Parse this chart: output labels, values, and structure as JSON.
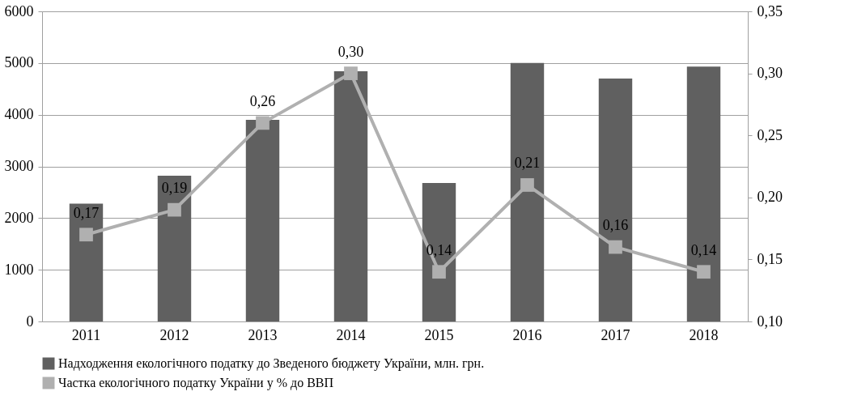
{
  "chart_data": {
    "type": "bar",
    "categories": [
      "2011",
      "2012",
      "2013",
      "2014",
      "2015",
      "2016",
      "2017",
      "2018"
    ],
    "series": [
      {
        "name": "Надходження екологічного податку до Зведеного бюджету України, млн. грн.",
        "color": "#606060",
        "values": [
          2280,
          2820,
          3900,
          4840,
          2680,
          5000,
          4700,
          4930
        ]
      },
      {
        "name": "Частка екологічного податку України у % до ВВП",
        "type": "line",
        "axis": "y2",
        "color": "#b0b0b0",
        "marker": "square",
        "values": [
          0.17,
          0.19,
          0.26,
          0.3,
          0.14,
          0.21,
          0.16,
          0.14
        ],
        "value_labels": [
          "0,17",
          "0,19",
          "0,26",
          "0,30",
          "0,14",
          "0,21",
          "0,16",
          "0,14"
        ]
      }
    ],
    "ylim": [
      0,
      6000
    ],
    "yticks": [
      0,
      1000,
      2000,
      3000,
      4000,
      5000,
      6000
    ],
    "y2lim": [
      0.1,
      0.35
    ],
    "y2ticks": [
      {
        "value": 0.1,
        "label": "0,10"
      },
      {
        "value": 0.15,
        "label": "0,15"
      },
      {
        "value": 0.2,
        "label": "0,20"
      },
      {
        "value": 0.25,
        "label": "0,25"
      },
      {
        "value": 0.3,
        "label": "0,30"
      },
      {
        "value": 0.35,
        "label": "0,35"
      }
    ],
    "grid": "y",
    "legend": "bottom"
  }
}
